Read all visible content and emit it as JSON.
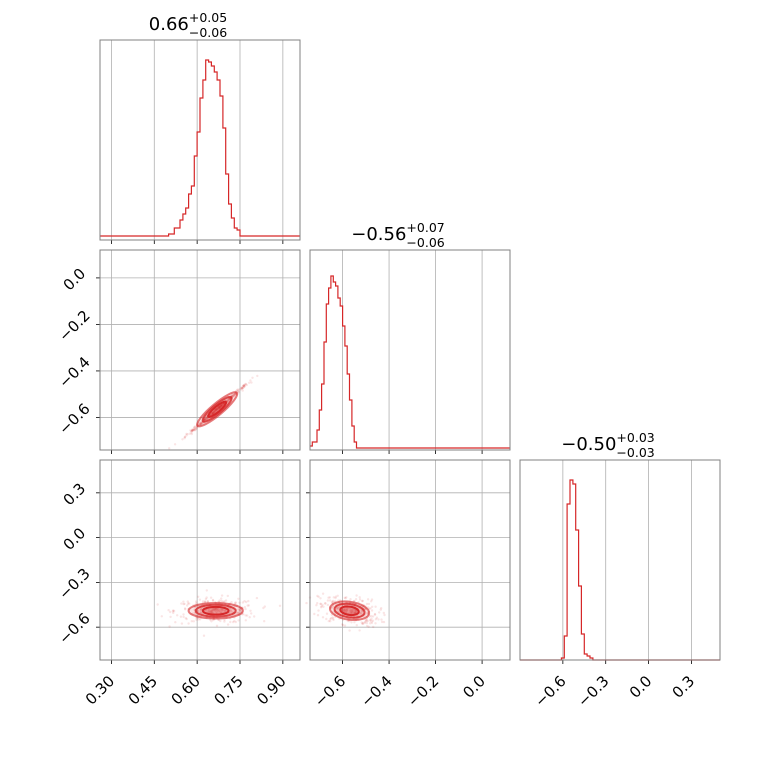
{
  "chart_data": {
    "type": "corner",
    "color": "#d62728",
    "parameters": [
      {
        "title": {
          "median": "0.66",
          "plus": "+0.05",
          "minus": "−0.06"
        },
        "ticks": [
          "0.30",
          "0.45",
          "0.60",
          "0.75",
          "0.90"
        ],
        "tick_values": [
          0.3,
          0.45,
          0.6,
          0.75,
          0.9
        ],
        "range": [
          0.26,
          0.96
        ],
        "histogram": {
          "bins": [
            [
              0.26,
              0.02
            ],
            [
              0.5,
              0.03
            ],
            [
              0.52,
              0.06
            ],
            [
              0.54,
              0.1
            ],
            [
              0.55,
              0.13
            ],
            [
              0.56,
              0.16
            ],
            [
              0.57,
              0.23
            ],
            [
              0.58,
              0.27
            ],
            [
              0.59,
              0.42
            ],
            [
              0.6,
              0.54
            ],
            [
              0.61,
              0.71
            ],
            [
              0.62,
              0.8
            ],
            [
              0.63,
              0.9
            ],
            [
              0.64,
              0.89
            ],
            [
              0.65,
              0.87
            ],
            [
              0.66,
              0.84
            ],
            [
              0.67,
              0.8
            ],
            [
              0.68,
              0.72
            ],
            [
              0.69,
              0.56
            ],
            [
              0.7,
              0.33
            ],
            [
              0.71,
              0.18
            ],
            [
              0.72,
              0.11
            ],
            [
              0.73,
              0.06
            ],
            [
              0.74,
              0.05
            ],
            [
              0.75,
              0.02
            ],
            [
              0.8,
              0.02
            ],
            [
              0.96,
              0.02
            ]
          ],
          "end": 0.96,
          "peak": 0.9
        }
      },
      {
        "title": {
          "median": "−0.56",
          "plus": "+0.07",
          "minus": "−0.06"
        },
        "ticks": [
          "−0.6",
          "−0.4",
          "−0.2",
          "0.0"
        ],
        "tick_values": [
          -0.6,
          -0.4,
          -0.2,
          0.0
        ],
        "range": [
          -0.74,
          0.12
        ],
        "histogram": {
          "bins": [
            [
              -0.74,
              0.02
            ],
            [
              -0.73,
              0.04
            ],
            [
              -0.71,
              0.1
            ],
            [
              -0.7,
              0.2
            ],
            [
              -0.69,
              0.33
            ],
            [
              -0.68,
              0.54
            ],
            [
              -0.67,
              0.73
            ],
            [
              -0.66,
              0.81
            ],
            [
              -0.65,
              0.87
            ],
            [
              -0.64,
              0.84
            ],
            [
              -0.63,
              0.82
            ],
            [
              -0.62,
              0.76
            ],
            [
              -0.61,
              0.72
            ],
            [
              -0.6,
              0.62
            ],
            [
              -0.59,
              0.52
            ],
            [
              -0.58,
              0.38
            ],
            [
              -0.57,
              0.25
            ],
            [
              -0.56,
              0.12
            ],
            [
              -0.55,
              0.04
            ],
            [
              -0.54,
              0.01
            ],
            [
              -0.53,
              0.01
            ],
            [
              -0.1,
              0.01
            ],
            [
              -0.08,
              0.01
            ],
            [
              0.12,
              0.01
            ]
          ],
          "end": 0.12,
          "peak": 0.9
        }
      },
      {
        "title": {
          "median": "−0.50",
          "plus": "+0.03",
          "minus": "−0.03"
        },
        "ticks": [
          "−0.6",
          "−0.3",
          "0.0",
          "0.3"
        ],
        "tick_values": [
          -0.6,
          -0.3,
          0.0,
          0.3
        ],
        "range": [
          -0.9,
          0.5
        ],
        "histogram": {
          "bins": [
            [
              -0.9,
              0.0
            ],
            [
              -0.61,
              0.01
            ],
            [
              -0.59,
              0.12
            ],
            [
              -0.57,
              0.78
            ],
            [
              -0.55,
              0.9
            ],
            [
              -0.53,
              0.88
            ],
            [
              -0.51,
              0.65
            ],
            [
              -0.49,
              0.37
            ],
            [
              -0.47,
              0.13
            ],
            [
              -0.45,
              0.03
            ],
            [
              -0.43,
              0.02
            ],
            [
              -0.41,
              0.01
            ],
            [
              -0.39,
              0.0
            ]
          ],
          "end": 0.5,
          "peak": 0.9
        }
      }
    ],
    "pair_ticks": {
      "row1_y": {
        "ticks": [
          "0.0",
          "−0.2",
          "−0.4",
          "−0.6"
        ],
        "values": [
          0.0,
          -0.2,
          -0.4,
          -0.6
        ],
        "range": [
          -0.74,
          0.12
        ]
      },
      "row2_y": {
        "ticks": [
          "0.3",
          "0.0",
          "−0.3",
          "−0.6"
        ],
        "values": [
          0.3,
          0.0,
          -0.3,
          -0.6
        ],
        "range": [
          -0.82,
          0.52
        ]
      }
    },
    "pairs": [
      {
        "x_param": 0,
        "y_param": 1,
        "angle_deg": 40,
        "center": [
          0.67,
          -0.565
        ],
        "contours": [
          {
            "rx": 0.09,
            "ry": 0.025,
            "alpha": 0.6
          },
          {
            "rx": 0.065,
            "ry": 0.019,
            "alpha": 0.8
          },
          {
            "rx": 0.04,
            "ry": 0.012,
            "alpha": 1.0
          }
        ]
      },
      {
        "x_param": 0,
        "y_param": 2,
        "angle_deg": 0,
        "center": [
          0.665,
          -0.49
        ],
        "contours": [
          {
            "rx": 0.095,
            "ry": 0.052,
            "alpha": 0.6
          },
          {
            "rx": 0.07,
            "ry": 0.04,
            "alpha": 0.8
          },
          {
            "rx": 0.045,
            "ry": 0.026,
            "alpha": 1.0
          }
        ]
      },
      {
        "x_param": 1,
        "y_param": 2,
        "angle_deg": -8,
        "center": [
          -0.57,
          -0.49
        ],
        "contours": [
          {
            "rx": 0.085,
            "ry": 0.06,
            "alpha": 0.6
          },
          {
            "rx": 0.065,
            "ry": 0.045,
            "alpha": 0.8
          },
          {
            "rx": 0.04,
            "ry": 0.028,
            "alpha": 1.0
          }
        ]
      }
    ],
    "grid": true
  }
}
